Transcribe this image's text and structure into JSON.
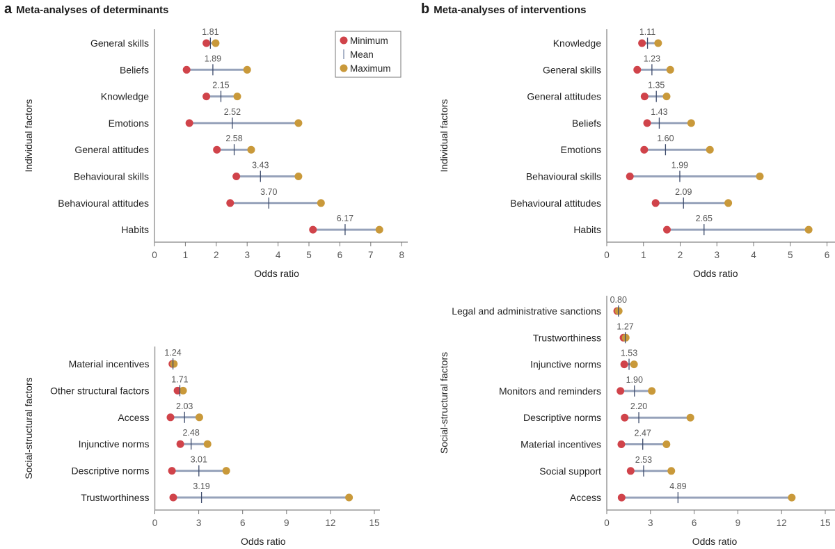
{
  "panels": {
    "a": {
      "letter": "a",
      "title": "Meta-analyses of determinants"
    },
    "b": {
      "letter": "b",
      "title": "Meta-analyses of interventions"
    }
  },
  "legend": {
    "items": [
      {
        "label": "Minimum",
        "marker": "dot",
        "color": "#D0434A"
      },
      {
        "label": "Mean",
        "marker": "tick",
        "color": "#8E9BB5"
      },
      {
        "label": "Maximum",
        "marker": "dot",
        "color": "#C9993A"
      }
    ]
  },
  "colors": {
    "minimum": "#D0434A",
    "maximum": "#C9993A",
    "range_line": "#96A2BA",
    "mean_tick": "#3D4B6B",
    "axis": "#9a9a9a"
  },
  "chart_data": [
    {
      "id": "a-individual",
      "panel": "a",
      "type": "dot-range",
      "title": "Meta-analyses of determinants",
      "group_label": "Individual factors",
      "xlabel": "Odds ratio",
      "xlim": [
        0,
        8
      ],
      "xticks": [
        0,
        1,
        2,
        3,
        4,
        5,
        6,
        7,
        8
      ],
      "legend": "top-right",
      "rows": [
        {
          "label": "General skills",
          "min": 1.68,
          "mean": 1.81,
          "max": 1.98,
          "mean_label": "1.81"
        },
        {
          "label": "Beliefs",
          "min": 1.04,
          "mean": 1.89,
          "max": 3.0,
          "mean_label": "1.89"
        },
        {
          "label": "Knowledge",
          "min": 1.68,
          "mean": 2.15,
          "max": 2.68,
          "mean_label": "2.15"
        },
        {
          "label": "Emotions",
          "min": 1.13,
          "mean": 2.52,
          "max": 4.66,
          "mean_label": "2.52"
        },
        {
          "label": "General attitudes",
          "min": 2.02,
          "mean": 2.58,
          "max": 3.13,
          "mean_label": "2.58"
        },
        {
          "label": "Behavioural skills",
          "min": 2.65,
          "mean": 3.43,
          "max": 4.66,
          "mean_label": "3.43"
        },
        {
          "label": "Behavioural attitudes",
          "min": 2.45,
          "mean": 3.7,
          "max": 5.39,
          "mean_label": "3.70"
        },
        {
          "label": "Habits",
          "min": 5.13,
          "mean": 6.17,
          "max": 7.28,
          "mean_label": "6.17"
        }
      ]
    },
    {
      "id": "a-social",
      "panel": "a",
      "type": "dot-range",
      "group_label": "Social-structural factors",
      "xlabel": "Odds ratio",
      "xlim": [
        0,
        15
      ],
      "xticks": [
        0,
        3,
        6,
        9,
        12,
        15
      ],
      "rows": [
        {
          "label": "Material incentives",
          "min": 1.2,
          "mean": 1.24,
          "max": 1.3,
          "mean_label": "1.24"
        },
        {
          "label": "Other structural factors",
          "min": 1.55,
          "mean": 1.71,
          "max": 1.93,
          "mean_label": "1.71"
        },
        {
          "label": "Access",
          "min": 1.07,
          "mean": 2.03,
          "max": 3.04,
          "mean_label": "2.03"
        },
        {
          "label": "Injunctive norms",
          "min": 1.74,
          "mean": 2.48,
          "max": 3.6,
          "mean_label": "2.48"
        },
        {
          "label": "Descriptive norms",
          "min": 1.17,
          "mean": 3.01,
          "max": 4.88,
          "mean_label": "3.01"
        },
        {
          "label": "Trustworthiness",
          "min": 1.26,
          "mean": 3.19,
          "max": 13.27,
          "mean_label": "3.19"
        }
      ]
    },
    {
      "id": "b-individual",
      "panel": "b",
      "type": "dot-range",
      "title": "Meta-analyses of interventions",
      "group_label": "Individual factors",
      "xlabel": "Odds ratio",
      "xlim": [
        0,
        6
      ],
      "xticks": [
        0,
        1,
        2,
        3,
        4,
        5,
        6
      ],
      "rows": [
        {
          "label": "Knowledge",
          "min": 0.96,
          "mean": 1.11,
          "max": 1.4,
          "mean_label": "1.11"
        },
        {
          "label": "General skills",
          "min": 0.83,
          "mean": 1.23,
          "max": 1.73,
          "mean_label": "1.23"
        },
        {
          "label": "General attitudes",
          "min": 1.03,
          "mean": 1.35,
          "max": 1.63,
          "mean_label": "1.35"
        },
        {
          "label": "Beliefs",
          "min": 1.1,
          "mean": 1.43,
          "max": 2.3,
          "mean_label": "1.43"
        },
        {
          "label": "Emotions",
          "min": 1.02,
          "mean": 1.6,
          "max": 2.81,
          "mean_label": "1.60"
        },
        {
          "label": "Behavioural skills",
          "min": 0.63,
          "mean": 1.99,
          "max": 4.17,
          "mean_label": "1.99"
        },
        {
          "label": "Behavioural attitudes",
          "min": 1.33,
          "mean": 2.09,
          "max": 3.31,
          "mean_label": "2.09"
        },
        {
          "label": "Habits",
          "min": 1.64,
          "mean": 2.65,
          "max": 5.5,
          "mean_label": "2.65"
        }
      ]
    },
    {
      "id": "b-social",
      "panel": "b",
      "type": "dot-range",
      "group_label": "Social-structural factors",
      "xlabel": "Odds ratio",
      "xlim": [
        0,
        15
      ],
      "xticks": [
        0,
        3,
        6,
        9,
        12,
        15
      ],
      "rows": [
        {
          "label": "Legal and administrative sanctions",
          "min": 0.72,
          "mean": 0.8,
          "max": 0.82,
          "mean_label": "0.80"
        },
        {
          "label": "Trustworthiness",
          "min": 1.15,
          "mean": 1.27,
          "max": 1.3,
          "mean_label": "1.27"
        },
        {
          "label": "Injunctive norms",
          "min": 1.2,
          "mean": 1.53,
          "max": 1.87,
          "mean_label": "1.53"
        },
        {
          "label": "Monitors and reminders",
          "min": 0.94,
          "mean": 1.9,
          "max": 3.09,
          "mean_label": "1.90"
        },
        {
          "label": "Descriptive norms",
          "min": 1.23,
          "mean": 2.2,
          "max": 5.74,
          "mean_label": "2.20"
        },
        {
          "label": "Material incentives",
          "min": 1.0,
          "mean": 2.47,
          "max": 4.1,
          "mean_label": "2.47"
        },
        {
          "label": "Social support",
          "min": 1.64,
          "mean": 2.53,
          "max": 4.43,
          "mean_label": "2.53"
        },
        {
          "label": "Access",
          "min": 1.02,
          "mean": 4.89,
          "max": 12.7,
          "mean_label": "4.89"
        }
      ]
    }
  ]
}
